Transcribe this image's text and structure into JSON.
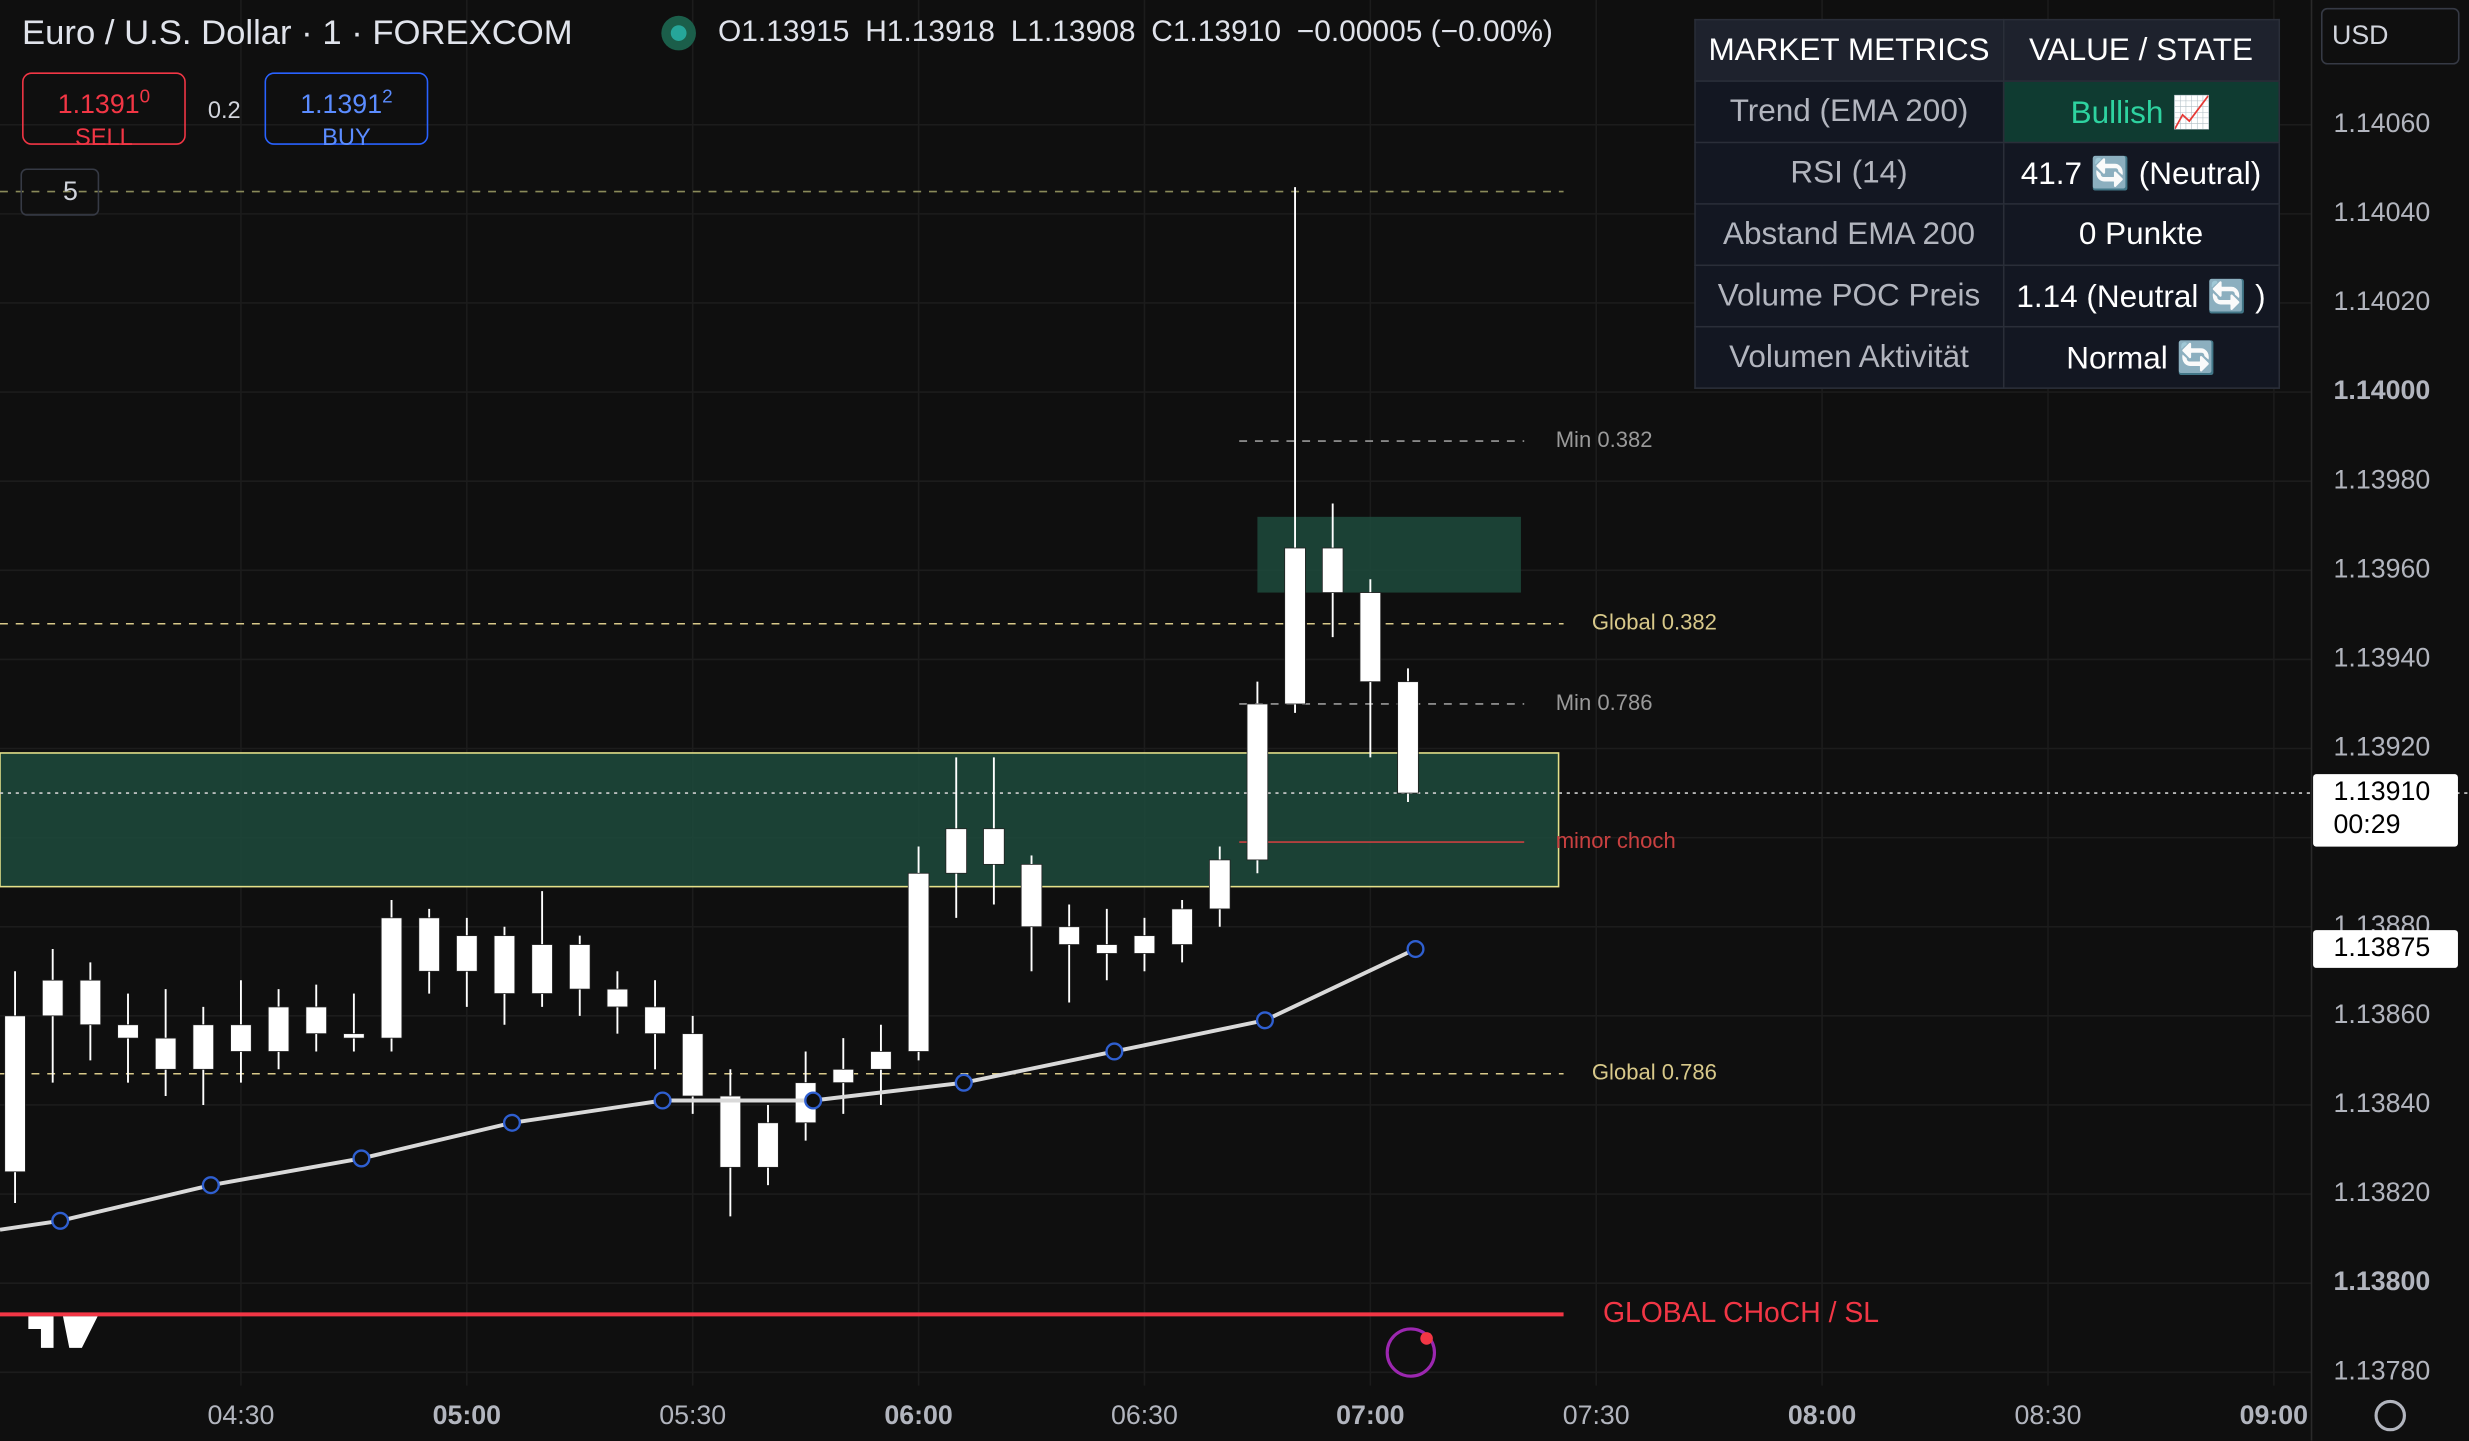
{
  "chart_data": {
    "type": "candlestick",
    "header": {
      "symbol": "Euro / U.S. Dollar · 1 · FOREXCOM",
      "ohlc": [
        "O1.13915",
        "H1.13918",
        "L1.13908",
        "C1.13910",
        "−0.00005 (−0.00%)"
      ]
    },
    "trade": {
      "sell_price": "1.1391",
      "sell_pip": "0",
      "sell": "SELL",
      "spread": "0.2",
      "buy_price": "1.1391",
      "buy_pip": "2",
      "buy": "BUY",
      "indicators": "5"
    },
    "currency": "USD",
    "x": [
      "04:00",
      "04:05",
      "04:10",
      "04:15",
      "04:20",
      "04:25",
      "04:30",
      "04:35",
      "04:40",
      "04:45",
      "04:50",
      "04:55",
      "05:00",
      "05:05",
      "05:10",
      "05:15",
      "05:20",
      "05:25",
      "05:30",
      "05:35",
      "05:40",
      "05:45",
      "05:50",
      "05:55",
      "06:00",
      "06:05",
      "06:10",
      "06:15",
      "06:20",
      "06:25",
      "06:30",
      "06:35",
      "06:40",
      "06:45",
      "06:50",
      "06:55",
      "07:00",
      "07:05"
    ],
    "open": [
      1.13825,
      1.1386,
      1.13868,
      1.13858,
      1.13855,
      1.13848,
      1.13858,
      1.13852,
      1.13862,
      1.13856,
      1.13855,
      1.13882,
      1.1387,
      1.13878,
      1.13865,
      1.13876,
      1.13866,
      1.13862,
      1.13856,
      1.13842,
      1.13826,
      1.13836,
      1.13845,
      1.13848,
      1.13852,
      1.13892,
      1.13902,
      1.13894,
      1.1388,
      1.13876,
      1.13874,
      1.13876,
      1.13884,
      1.13895,
      1.1393,
      1.13965,
      1.13955,
      1.13935
    ],
    "high": [
      1.1387,
      1.13875,
      1.13872,
      1.13865,
      1.13866,
      1.13862,
      1.13868,
      1.13866,
      1.13867,
      1.13865,
      1.13886,
      1.13884,
      1.13882,
      1.1388,
      1.13888,
      1.13878,
      1.1387,
      1.13868,
      1.1386,
      1.13848,
      1.1384,
      1.13852,
      1.13855,
      1.13858,
      1.13898,
      1.13918,
      1.13918,
      1.13896,
      1.13885,
      1.13884,
      1.13882,
      1.13886,
      1.13898,
      1.13935,
      1.14046,
      1.13975,
      1.13958,
      1.13938
    ],
    "low": [
      1.13818,
      1.13845,
      1.1385,
      1.13845,
      1.13842,
      1.1384,
      1.13845,
      1.13848,
      1.13852,
      1.13852,
      1.13852,
      1.13865,
      1.13862,
      1.13858,
      1.13862,
      1.1386,
      1.13856,
      1.13848,
      1.13838,
      1.13815,
      1.13822,
      1.13832,
      1.13838,
      1.1384,
      1.1385,
      1.13882,
      1.13885,
      1.1387,
      1.13863,
      1.13868,
      1.1387,
      1.13872,
      1.1388,
      1.13892,
      1.13928,
      1.13945,
      1.13918,
      1.13908
    ],
    "close": [
      1.1386,
      1.13868,
      1.13858,
      1.13855,
      1.13848,
      1.13858,
      1.13852,
      1.13862,
      1.13856,
      1.13855,
      1.13882,
      1.1387,
      1.13878,
      1.13865,
      1.13876,
      1.13866,
      1.13862,
      1.13856,
      1.13842,
      1.13826,
      1.13836,
      1.13845,
      1.13848,
      1.13852,
      1.13892,
      1.13902,
      1.13894,
      1.1388,
      1.13876,
      1.13874,
      1.13878,
      1.13884,
      1.13895,
      1.1393,
      1.13965,
      1.13955,
      1.13935,
      1.1391
    ],
    "up_color": "#ffffff",
    "down_color": "#ffffff",
    "lines": [
      {
        "color": "#d9d9d9",
        "marker_color": "#2f5fd0",
        "x": [
          "03:58",
          "04:06",
          "04:26",
          "04:46",
          "05:06",
          "05:26",
          "05:46",
          "06:06",
          "06:26",
          "06:46",
          "07:06"
        ],
        "values": [
          1.13812,
          1.13814,
          1.13822,
          1.13828,
          1.13836,
          1.13841,
          1.13841,
          1.13845,
          1.13852,
          1.13859,
          1.13875
        ]
      }
    ],
    "zones": [
      {
        "from": 1.13889,
        "to": 1.13919,
        "start": "03:58",
        "end": "07:25"
      },
      {
        "from": 1.13955,
        "to": 1.13972,
        "start": "06:45",
        "end": "07:20"
      }
    ],
    "levels": [
      {
        "value": 1.14045,
        "color": "#8a8a5a",
        "span": "full"
      },
      {
        "label": "Min 0.382",
        "value": 1.13989,
        "color": "#9a9a9a",
        "span": "local"
      },
      {
        "label": "Global 0.382",
        "value": 1.13948,
        "color": "#d8c98a",
        "span": "full"
      },
      {
        "label": "Min 0.786",
        "value": 1.1393,
        "color": "#9a9a9a",
        "span": "local"
      },
      {
        "label": "minor choch",
        "value": 1.13899,
        "color": "#c94040",
        "span": "local"
      },
      {
        "label": "Global 0.786",
        "value": 1.13847,
        "color": "#d8c98a",
        "span": "full"
      },
      {
        "label": "GLOBAL CHoCH / SL",
        "value": 1.13793,
        "color": "#f23645",
        "span": "full"
      }
    ],
    "price_labels": [
      {
        "value": 1.1391,
        "label": "1.13910",
        "countdown": "00:29"
      },
      {
        "value": 1.13875,
        "label": "1.13875"
      }
    ],
    "xlim": [
      "03:58",
      "09:05"
    ],
    "xticks": [
      "04:30",
      "05:00",
      "05:30",
      "06:00",
      "06:30",
      "07:00",
      "07:30",
      "08:00",
      "08:30",
      "09:00"
    ],
    "ylim": [
      1.13777,
      1.14088
    ],
    "yticks": [
      {
        "value": 1.1378,
        "label": "1.13780"
      },
      {
        "value": 1.138,
        "label": "1.13800"
      },
      {
        "value": 1.1382,
        "label": "1.13820"
      },
      {
        "value": 1.1384,
        "label": "1.13840"
      },
      {
        "value": 1.1386,
        "label": "1.13860"
      },
      {
        "value": 1.1388,
        "label": "1.13880"
      },
      {
        "value": 1.139,
        "label": "1.13900"
      },
      {
        "value": 1.1392,
        "label": "1.13920"
      },
      {
        "value": 1.1394,
        "label": "1.13940"
      },
      {
        "value": 1.1396,
        "label": "1.13960"
      },
      {
        "value": 1.1398,
        "label": "1.13980"
      },
      {
        "value": 1.14,
        "label": "1.14000"
      },
      {
        "value": 1.1402,
        "label": "1.14020"
      },
      {
        "value": 1.1404,
        "label": "1.14040"
      },
      {
        "value": 1.1406,
        "label": "1.14060"
      }
    ],
    "grid": true,
    "table": {
      "header": [
        "MARKET METRICS",
        "VALUE / STATE"
      ],
      "rows": [
        [
          "Trend (EMA 200)",
          "Bullish 📈"
        ],
        [
          "RSI (14)",
          "41.7 🔄  (Neutral)"
        ],
        [
          "Abstand EMA 200",
          "0 Punkte"
        ],
        [
          "Volume POC Preis",
          "1.14 (Neutral 🔄 )"
        ],
        [
          "Volumen Aktivität",
          "Normal 🔄"
        ]
      ]
    }
  }
}
